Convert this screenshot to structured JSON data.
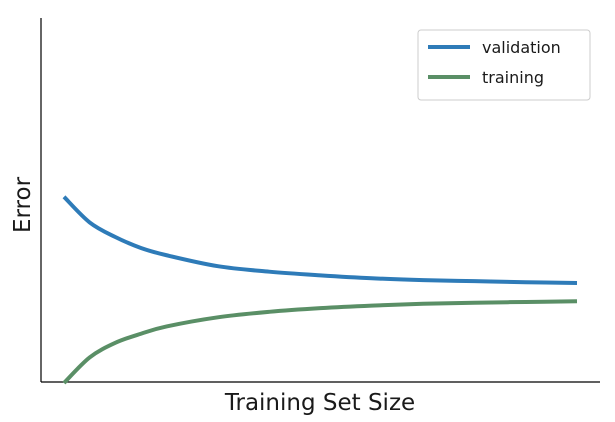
{
  "chart_data": {
    "type": "line",
    "title": "",
    "xlabel": "Training Set Size",
    "ylabel": "Error",
    "xlim": [
      0,
      1
    ],
    "ylim": [
      0,
      1
    ],
    "grid": false,
    "legend_position": "top-right",
    "x": [
      0,
      0.05,
      0.1,
      0.15,
      0.2,
      0.3,
      0.4,
      0.5,
      0.6,
      0.7,
      0.8,
      0.9,
      1.0
    ],
    "series": [
      {
        "name": "validation",
        "color": "#2e7bb8",
        "values": [
          0.51,
          0.44,
          0.4,
          0.37,
          0.35,
          0.32,
          0.305,
          0.295,
          0.287,
          0.282,
          0.279,
          0.276,
          0.274
        ]
      },
      {
        "name": "training",
        "color": "#5a8f66",
        "values": [
          0.0,
          0.07,
          0.11,
          0.135,
          0.155,
          0.18,
          0.195,
          0.205,
          0.212,
          0.217,
          0.22,
          0.222,
          0.224
        ]
      }
    ]
  }
}
